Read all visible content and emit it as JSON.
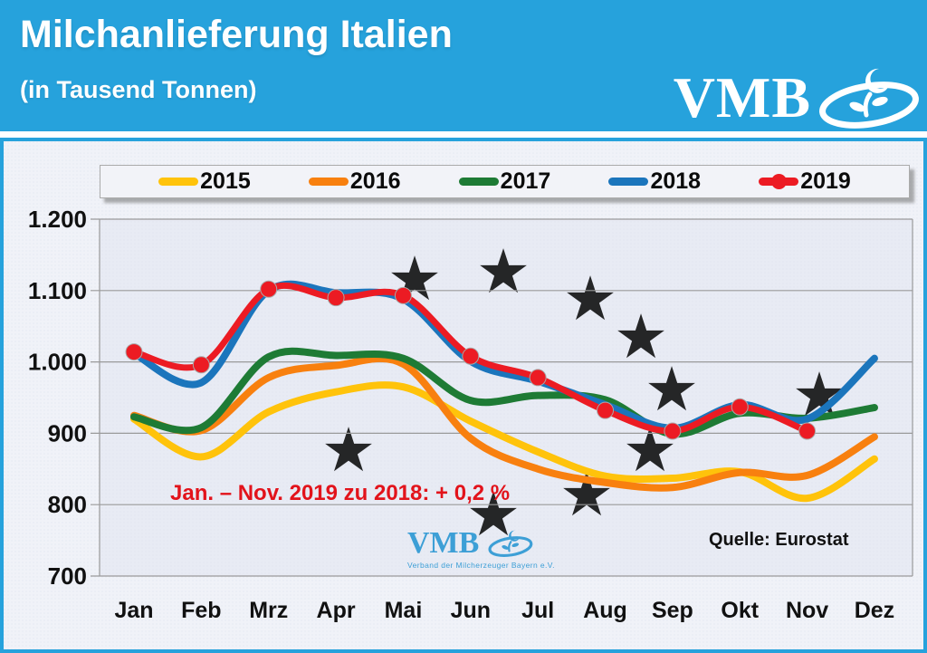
{
  "header": {
    "title": "Milchanlieferung Italien",
    "subtitle": "(in Tausend Tonnen)",
    "logo_text": "VMB"
  },
  "panel": {
    "annotation": "Jan. – Nov. 2019 zu 2018: + 0,2 %",
    "source": "Quelle: Eurostat",
    "watermark": {
      "text": "VMB",
      "subtext": "Verband der Milcherzeuger Bayern e.V."
    }
  },
  "colors": {
    "header_blue": "#26A2DC",
    "panel_bg": "#F0F2F8",
    "plot_bg": "#E8EBF4",
    "gridline": "#9A9A9A",
    "annotation_red": "#E2131B",
    "watermark_blue": "#3D9FD6",
    "star_cream": "#F3ECCC"
  },
  "chart_data": {
    "type": "line",
    "title": "Milchanlieferung Italien",
    "units": "Tausend Tonnen",
    "categories": [
      "Jan",
      "Feb",
      "Mrz",
      "Apr",
      "Mai",
      "Jun",
      "Jul",
      "Aug",
      "Sep",
      "Okt",
      "Nov",
      "Dez"
    ],
    "series": [
      {
        "name": "2015",
        "color": "#FFC30B",
        "markers": false,
        "values": [
          920,
          867,
          930,
          958,
          965,
          917,
          874,
          840,
          837,
          846,
          809,
          864
        ]
      },
      {
        "name": "2016",
        "color": "#F8800F",
        "markers": false,
        "values": [
          925,
          904,
          978,
          995,
          997,
          893,
          850,
          831,
          824,
          845,
          841,
          895
        ]
      },
      {
        "name": "2017",
        "color": "#1E7B35",
        "markers": false,
        "values": [
          923,
          908,
          1007,
          1009,
          1005,
          946,
          953,
          947,
          899,
          928,
          921,
          936
        ]
      },
      {
        "name": "2018",
        "color": "#1B75BC",
        "markers": false,
        "values": [
          1012,
          971,
          1100,
          1097,
          1088,
          1001,
          973,
          940,
          907,
          940,
          920,
          1005
        ]
      },
      {
        "name": "2019",
        "color": "#EC1B23",
        "markers": true,
        "values": [
          1014,
          996,
          1102,
          1090,
          1093,
          1008,
          978,
          932,
          903,
          937,
          903,
          null
        ]
      }
    ],
    "ylim": [
      700,
      1200
    ],
    "yticks": [
      {
        "v": 700,
        "label": "700"
      },
      {
        "v": 800,
        "label": "800"
      },
      {
        "v": 900,
        "label": "900"
      },
      {
        "v": 1000,
        "label": "1.000"
      },
      {
        "v": 1100,
        "label": "1.100"
      },
      {
        "v": 1200,
        "label": "1.200"
      }
    ],
    "grid": true,
    "legend_position": "top"
  }
}
